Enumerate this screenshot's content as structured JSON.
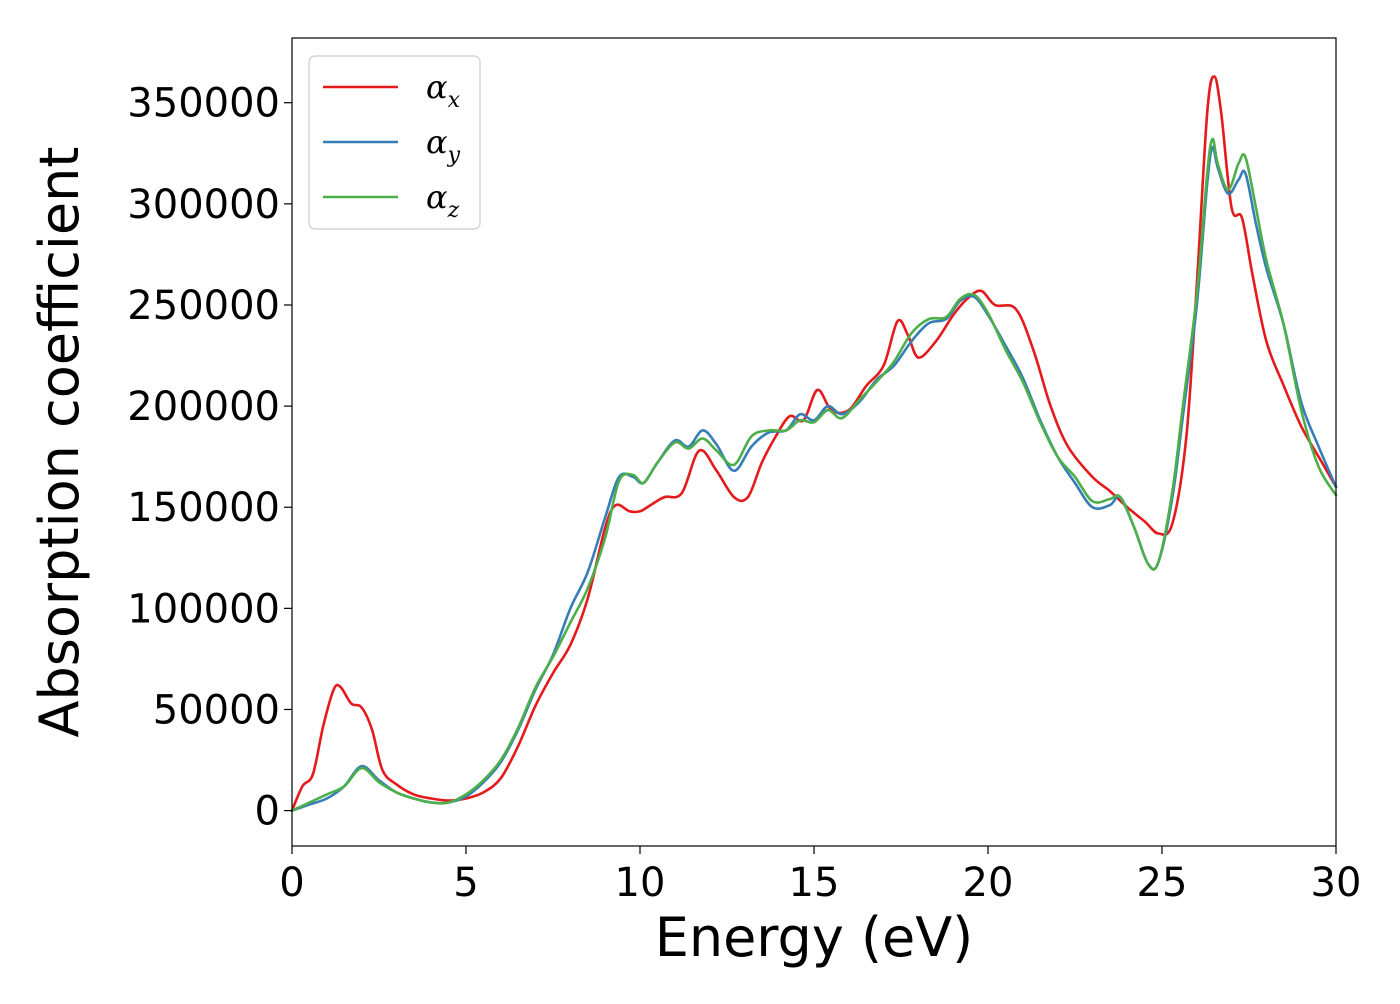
{
  "chart_data": {
    "type": "line",
    "title": "",
    "xlabel": "Energy (eV)",
    "ylabel": "Absorption coefficient",
    "xlim": [
      0,
      30
    ],
    "ylim": [
      -17500,
      382000
    ],
    "xticks": [
      0,
      5,
      10,
      15,
      20,
      25,
      30
    ],
    "yticks": [
      0,
      50000,
      100000,
      150000,
      200000,
      250000,
      300000,
      350000
    ],
    "grid": false,
    "legend_position": "top-left",
    "series": [
      {
        "name": "αx",
        "symbol": "α",
        "subscript": "x",
        "color": "#e41a1c",
        "points": [
          [
            0,
            0
          ],
          [
            0.3,
            12000
          ],
          [
            0.6,
            18000
          ],
          [
            0.9,
            42000
          ],
          [
            1.2,
            60000
          ],
          [
            1.4,
            61000
          ],
          [
            1.7,
            53000
          ],
          [
            2.0,
            51000
          ],
          [
            2.3,
            40000
          ],
          [
            2.6,
            20000
          ],
          [
            3.0,
            13000
          ],
          [
            3.5,
            8000
          ],
          [
            4.0,
            6000
          ],
          [
            4.5,
            5000
          ],
          [
            5.0,
            6000
          ],
          [
            5.5,
            9000
          ],
          [
            6.0,
            16000
          ],
          [
            6.5,
            32000
          ],
          [
            7.0,
            52000
          ],
          [
            7.5,
            68000
          ],
          [
            8.0,
            82000
          ],
          [
            8.5,
            105000
          ],
          [
            9.0,
            140000
          ],
          [
            9.3,
            151000
          ],
          [
            9.7,
            148000
          ],
          [
            10.0,
            148000
          ],
          [
            10.3,
            151000
          ],
          [
            10.7,
            155000
          ],
          [
            11.2,
            157000
          ],
          [
            11.7,
            178000
          ],
          [
            12.2,
            168000
          ],
          [
            12.7,
            155000
          ],
          [
            13.1,
            155000
          ],
          [
            13.5,
            172000
          ],
          [
            13.9,
            185000
          ],
          [
            14.3,
            195000
          ],
          [
            14.7,
            193000
          ],
          [
            15.1,
            208000
          ],
          [
            15.5,
            198000
          ],
          [
            16.0,
            198000
          ],
          [
            16.5,
            210000
          ],
          [
            17.0,
            220000
          ],
          [
            17.4,
            242000
          ],
          [
            17.7,
            235000
          ],
          [
            18.0,
            224000
          ],
          [
            18.5,
            232000
          ],
          [
            19.0,
            245000
          ],
          [
            19.4,
            253000
          ],
          [
            19.8,
            257000
          ],
          [
            20.2,
            250000
          ],
          [
            20.8,
            248000
          ],
          [
            21.3,
            228000
          ],
          [
            21.8,
            200000
          ],
          [
            22.3,
            180000
          ],
          [
            23.0,
            165000
          ],
          [
            23.5,
            158000
          ],
          [
            24.0,
            150000
          ],
          [
            24.5,
            143000
          ],
          [
            24.9,
            137000
          ],
          [
            25.3,
            142000
          ],
          [
            25.7,
            185000
          ],
          [
            26.0,
            260000
          ],
          [
            26.3,
            345000
          ],
          [
            26.5,
            363000
          ],
          [
            26.7,
            345000
          ],
          [
            27.0,
            298000
          ],
          [
            27.3,
            293000
          ],
          [
            27.6,
            265000
          ],
          [
            28.0,
            232000
          ],
          [
            28.5,
            210000
          ],
          [
            29.0,
            190000
          ],
          [
            29.5,
            175000
          ],
          [
            30.0,
            160000
          ]
        ]
      },
      {
        "name": "αy",
        "symbol": "α",
        "subscript": "y",
        "color": "#377eb8",
        "points": [
          [
            0,
            0
          ],
          [
            0.5,
            3000
          ],
          [
            1.0,
            6000
          ],
          [
            1.5,
            12000
          ],
          [
            2.0,
            22000
          ],
          [
            2.5,
            15000
          ],
          [
            3.0,
            9000
          ],
          [
            3.5,
            6000
          ],
          [
            4.0,
            4000
          ],
          [
            4.5,
            4000
          ],
          [
            5.0,
            7000
          ],
          [
            5.5,
            14000
          ],
          [
            6.0,
            24000
          ],
          [
            6.5,
            40000
          ],
          [
            7.0,
            60000
          ],
          [
            7.5,
            77000
          ],
          [
            8.0,
            100000
          ],
          [
            8.5,
            118000
          ],
          [
            9.0,
            145000
          ],
          [
            9.4,
            165000
          ],
          [
            9.8,
            165000
          ],
          [
            10.1,
            162000
          ],
          [
            10.5,
            172000
          ],
          [
            11.0,
            183000
          ],
          [
            11.4,
            180000
          ],
          [
            11.8,
            188000
          ],
          [
            12.2,
            181000
          ],
          [
            12.7,
            168000
          ],
          [
            13.2,
            180000
          ],
          [
            13.7,
            187000
          ],
          [
            14.2,
            188000
          ],
          [
            14.6,
            196000
          ],
          [
            15.0,
            193000
          ],
          [
            15.4,
            200000
          ],
          [
            15.8,
            196000
          ],
          [
            16.3,
            202000
          ],
          [
            16.8,
            213000
          ],
          [
            17.3,
            220000
          ],
          [
            17.8,
            232000
          ],
          [
            18.3,
            241000
          ],
          [
            18.8,
            243000
          ],
          [
            19.2,
            252000
          ],
          [
            19.6,
            254000
          ],
          [
            20.0,
            245000
          ],
          [
            20.5,
            230000
          ],
          [
            21.0,
            214000
          ],
          [
            21.5,
            193000
          ],
          [
            22.0,
            175000
          ],
          [
            22.5,
            162000
          ],
          [
            23.0,
            150000
          ],
          [
            23.5,
            151000
          ],
          [
            23.8,
            155000
          ],
          [
            24.2,
            140000
          ],
          [
            24.6,
            122000
          ],
          [
            24.9,
            123000
          ],
          [
            25.3,
            155000
          ],
          [
            25.6,
            195000
          ],
          [
            26.0,
            250000
          ],
          [
            26.3,
            310000
          ],
          [
            26.45,
            328000
          ],
          [
            26.6,
            318000
          ],
          [
            26.9,
            305000
          ],
          [
            27.2,
            312000
          ],
          [
            27.4,
            315000
          ],
          [
            27.7,
            290000
          ],
          [
            28.0,
            268000
          ],
          [
            28.5,
            240000
          ],
          [
            29.0,
            202000
          ],
          [
            29.5,
            180000
          ],
          [
            30.0,
            160000
          ]
        ]
      },
      {
        "name": "αz",
        "symbol": "α",
        "subscript": "z",
        "color": "#4daf4a",
        "points": [
          [
            0,
            0
          ],
          [
            0.5,
            4000
          ],
          [
            1.0,
            8000
          ],
          [
            1.5,
            12000
          ],
          [
            2.0,
            21000
          ],
          [
            2.5,
            14000
          ],
          [
            3.0,
            9000
          ],
          [
            3.5,
            6000
          ],
          [
            4.0,
            4000
          ],
          [
            4.5,
            4000
          ],
          [
            5.0,
            8000
          ],
          [
            5.5,
            15000
          ],
          [
            6.0,
            25000
          ],
          [
            6.5,
            41000
          ],
          [
            7.0,
            61000
          ],
          [
            7.5,
            76000
          ],
          [
            8.0,
            93000
          ],
          [
            8.5,
            110000
          ],
          [
            9.0,
            135000
          ],
          [
            9.4,
            163000
          ],
          [
            9.8,
            166000
          ],
          [
            10.1,
            162000
          ],
          [
            10.5,
            172000
          ],
          [
            11.0,
            182000
          ],
          [
            11.4,
            179000
          ],
          [
            11.8,
            184000
          ],
          [
            12.2,
            178000
          ],
          [
            12.7,
            171000
          ],
          [
            13.2,
            185000
          ],
          [
            13.7,
            188000
          ],
          [
            14.2,
            188000
          ],
          [
            14.6,
            193000
          ],
          [
            15.0,
            192000
          ],
          [
            15.4,
            198000
          ],
          [
            15.8,
            194000
          ],
          [
            16.3,
            203000
          ],
          [
            16.8,
            212000
          ],
          [
            17.3,
            222000
          ],
          [
            17.8,
            236000
          ],
          [
            18.3,
            243000
          ],
          [
            18.8,
            244000
          ],
          [
            19.2,
            253000
          ],
          [
            19.6,
            255000
          ],
          [
            20.0,
            246000
          ],
          [
            20.5,
            228000
          ],
          [
            21.0,
            212000
          ],
          [
            21.5,
            192000
          ],
          [
            22.0,
            175000
          ],
          [
            22.5,
            165000
          ],
          [
            23.0,
            153000
          ],
          [
            23.5,
            154000
          ],
          [
            23.8,
            155000
          ],
          [
            24.2,
            140000
          ],
          [
            24.6,
            122000
          ],
          [
            24.9,
            123000
          ],
          [
            25.3,
            158000
          ],
          [
            25.6,
            200000
          ],
          [
            26.0,
            255000
          ],
          [
            26.3,
            315000
          ],
          [
            26.45,
            332000
          ],
          [
            26.6,
            320000
          ],
          [
            26.9,
            307000
          ],
          [
            27.2,
            320000
          ],
          [
            27.4,
            323000
          ],
          [
            27.7,
            298000
          ],
          [
            28.0,
            272000
          ],
          [
            28.5,
            240000
          ],
          [
            29.0,
            198000
          ],
          [
            29.5,
            170000
          ],
          [
            30.0,
            156000
          ]
        ]
      }
    ]
  }
}
